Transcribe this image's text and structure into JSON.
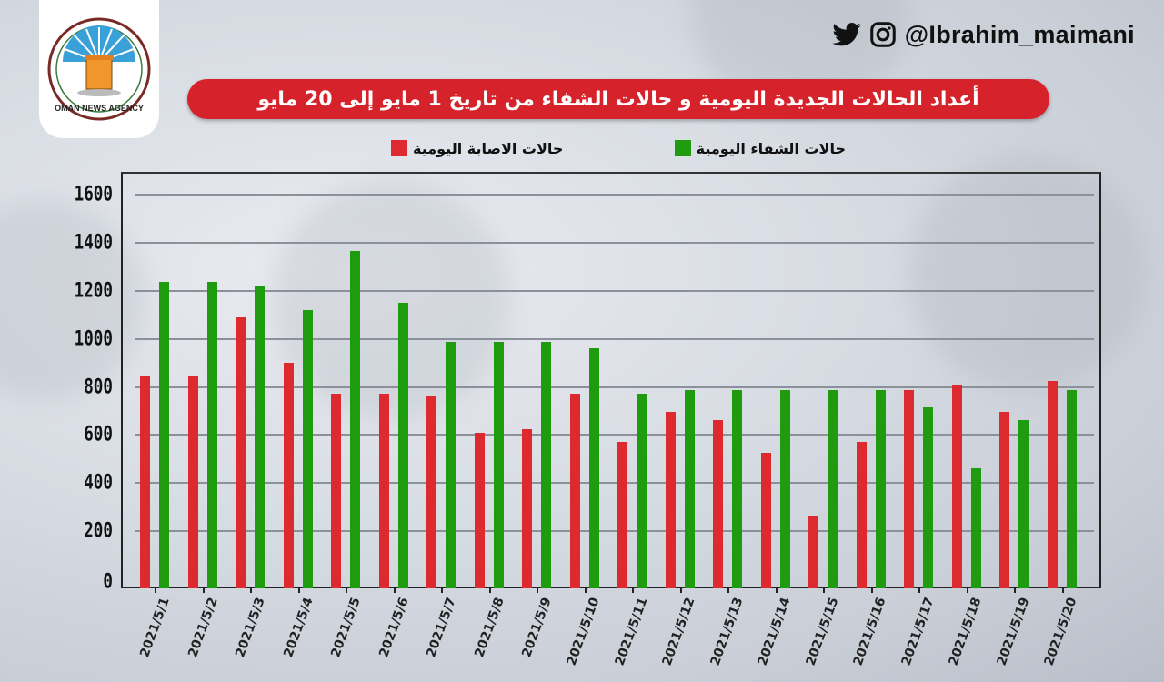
{
  "header": {
    "social_handle": "@Ibrahim_maimani",
    "icons": [
      "twitter-icon",
      "instagram-icon"
    ],
    "logo_text": "OMAN NEWS AGENCY",
    "title": "أعداد الحالات الجديدة اليومية و حالات الشفاء من تاريخ 1 مايو إلى 20 مايو"
  },
  "legend": {
    "recoveries": "حالات الشفاء اليومية",
    "infections": "حالات الاصابة اليومية"
  },
  "colors": {
    "infections": "#dc2a2e",
    "recoveries": "#1e9b0f",
    "title_bg": "#d6232b"
  },
  "chart_data": {
    "type": "bar",
    "title": "أعداد الحالات الجديدة اليومية و حالات الشفاء من تاريخ 1 مايو إلى 20 مايو",
    "xlabel": "",
    "ylabel": "",
    "ylim": [
      0,
      1600
    ],
    "yticks": [
      0,
      200,
      400,
      600,
      800,
      1000,
      1200,
      1400,
      1600
    ],
    "grid": true,
    "legend_position": "top",
    "categories": [
      "2021/5/1",
      "2021/5/2",
      "2021/5/3",
      "2021/5/4",
      "2021/5/5",
      "2021/5/6",
      "2021/5/7",
      "2021/5/8",
      "2021/5/9",
      "2021/5/10",
      "2021/5/11",
      "2021/5/12",
      "2021/5/13",
      "2021/5/14",
      "2021/5/15",
      "2021/5/16",
      "2021/5/17",
      "2021/5/18",
      "2021/5/19",
      "2021/5/20"
    ],
    "series": [
      {
        "name": "حالات الاصابة اليومية",
        "color": "#dc2a2e",
        "values": [
          848,
          848,
          1090,
          900,
          772,
          772,
          760,
          609,
          624,
          772,
          571,
          696,
          662,
          526,
          265,
          571,
          787,
          810,
          696,
          825
        ]
      },
      {
        "name": "حالات الشفاء اليومية",
        "color": "#1e9b0f",
        "values": [
          1237,
          1237,
          1218,
          1120,
          1366,
          1150,
          987,
          987,
          987,
          961,
          772,
          787,
          787,
          787,
          787,
          787,
          715,
          462,
          662,
          787
        ]
      }
    ]
  }
}
